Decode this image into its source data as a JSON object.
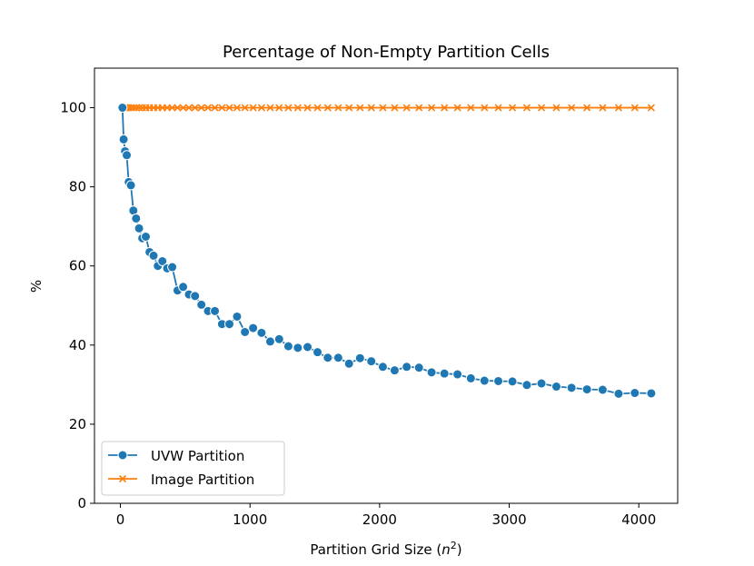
{
  "chart_data": {
    "type": "line",
    "title": "Percentage of Non-Empty Partition Cells",
    "xlabel_main": "Partition Grid Size (",
    "xlabel_var": "n",
    "xlabel_sup": "2",
    "xlabel_end": ")",
    "ylabel": "%",
    "xlim": [
      -200,
      4300
    ],
    "ylim": [
      0,
      110
    ],
    "xticks": [
      0,
      1000,
      2000,
      3000,
      4000
    ],
    "xtick_labels": [
      "0",
      "1000",
      "2000",
      "3000",
      "4000"
    ],
    "yticks": [
      0,
      20,
      40,
      60,
      80,
      100
    ],
    "ytick_labels": [
      "0",
      "20",
      "40",
      "60",
      "80",
      "100"
    ],
    "legend_position": "lower-left",
    "series": [
      {
        "name": "UVW Partition",
        "color": "#1f77b4",
        "marker": "circle",
        "x": [
          16,
          25,
          36,
          49,
          64,
          81,
          100,
          121,
          144,
          169,
          196,
          225,
          256,
          289,
          324,
          361,
          400,
          441,
          484,
          529,
          576,
          625,
          676,
          729,
          784,
          841,
          900,
          961,
          1024,
          1089,
          1156,
          1225,
          1296,
          1369,
          1444,
          1521,
          1600,
          1681,
          1764,
          1849,
          1936,
          2025,
          2116,
          2209,
          2304,
          2401,
          2500,
          2601,
          2704,
          2809,
          2916,
          3025,
          3136,
          3249,
          3364,
          3481,
          3600,
          3721,
          3844,
          3969,
          4096
        ],
        "y": [
          100,
          92,
          89,
          88,
          81.2,
          80.4,
          74,
          72,
          69.5,
          67,
          67.4,
          63.5,
          62.6,
          60,
          61.2,
          59.4,
          59.7,
          53.8,
          54.7,
          52.8,
          52.4,
          50.2,
          48.6,
          48.6,
          45.3,
          45.3,
          47.2,
          43.3,
          44.3,
          43.1,
          40.9,
          41.5,
          39.7,
          39.3,
          39.5,
          38.2,
          36.8,
          36.8,
          35.3,
          36.7,
          35.9,
          34.5,
          33.6,
          34.5,
          34.3,
          33.1,
          32.8,
          32.6,
          31.6,
          31.0,
          30.9,
          30.8,
          29.9,
          30.3,
          29.5,
          29.2,
          28.8,
          28.7,
          27.7,
          27.9,
          27.8
        ]
      },
      {
        "name": "Image Partition",
        "color": "#ff7f0e",
        "marker": "x",
        "x": [
          16,
          25,
          36,
          49,
          64,
          81,
          100,
          121,
          144,
          169,
          196,
          225,
          256,
          289,
          324,
          361,
          400,
          441,
          484,
          529,
          576,
          625,
          676,
          729,
          784,
          841,
          900,
          961,
          1024,
          1089,
          1156,
          1225,
          1296,
          1369,
          1444,
          1521,
          1600,
          1681,
          1764,
          1849,
          1936,
          2025,
          2116,
          2209,
          2304,
          2401,
          2500,
          2601,
          2704,
          2809,
          2916,
          3025,
          3136,
          3249,
          3364,
          3481,
          3600,
          3721,
          3844,
          3969,
          4096
        ],
        "y": [
          100,
          100,
          100,
          100,
          100,
          100,
          100,
          100,
          100,
          100,
          100,
          100,
          100,
          100,
          100,
          100,
          100,
          100,
          100,
          100,
          100,
          100,
          100,
          100,
          100,
          100,
          100,
          100,
          100,
          100,
          100,
          100,
          100,
          100,
          100,
          100,
          100,
          100,
          100,
          100,
          100,
          100,
          100,
          100,
          100,
          100,
          100,
          100,
          100,
          100,
          100,
          100,
          100,
          100,
          100,
          100,
          100,
          100,
          100,
          100,
          100
        ]
      }
    ]
  }
}
